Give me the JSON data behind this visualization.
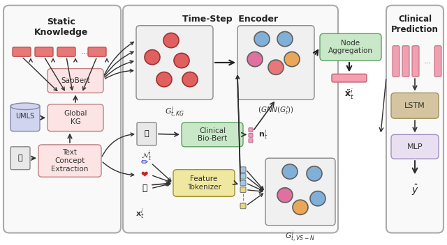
{
  "title": "",
  "bg_color": "#ffffff",
  "panel_static_title": "Static\nKnowledge",
  "panel_timestep_title": "Time-Step  Encoder",
  "panel_clinical_title": "Clinical\nPrediction",
  "colors": {
    "panel_bg": "#f8f8f8",
    "pink_box": "#f5c6cb",
    "light_pink_box": "#f8d7da",
    "green_box": "#b8e6b8",
    "tan_box": "#d4c5a0",
    "lavender_box": "#e8e0f0",
    "blue_lavender": "#c5c8e8",
    "red_node": "#e06060",
    "pink_node": "#e070a0",
    "blue_node": "#80b0d8",
    "orange_node": "#e8a858",
    "border_dark": "#404040",
    "arrow_color": "#202020",
    "dashed_line": "#808080",
    "bar_red": "#e87878",
    "bar_dark": "#c05050"
  }
}
